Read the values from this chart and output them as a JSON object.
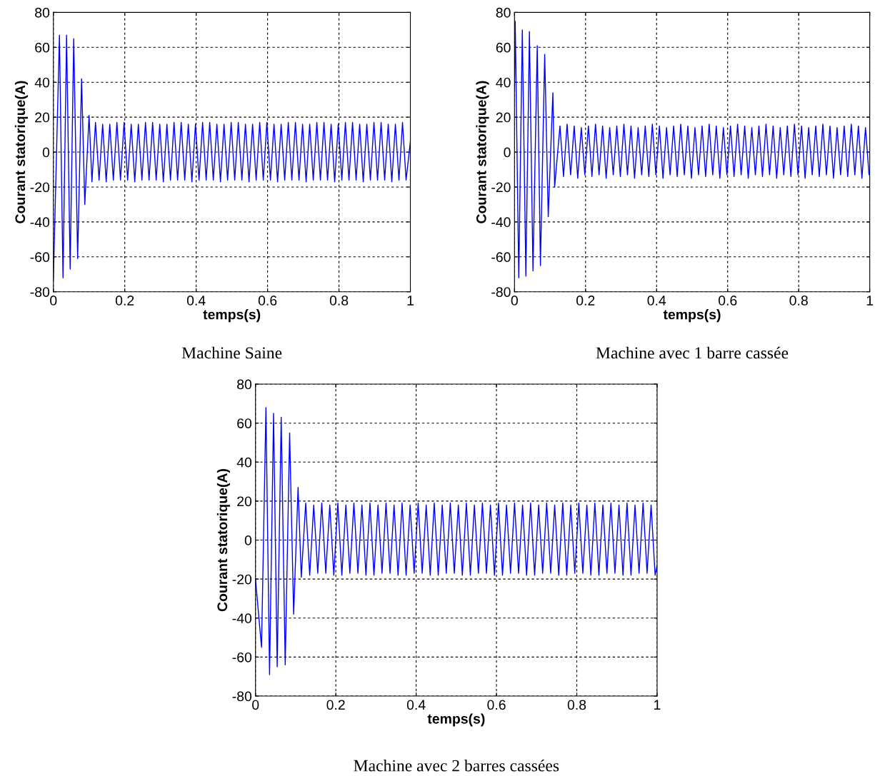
{
  "chart_data": [
    {
      "type": "line",
      "title": "Machine Saine",
      "xlabel": "temps(s)",
      "ylabel": "Courant statorique(A)",
      "color": "#0000ff",
      "xlim": [
        0,
        1
      ],
      "ylim": [
        -80,
        80
      ],
      "xticks": [
        0,
        0.2,
        0.4,
        0.6,
        0.8,
        1
      ],
      "yticks": [
        -80,
        -60,
        -40,
        -20,
        0,
        20,
        40,
        60,
        80
      ],
      "grid": true,
      "line_style": "solid",
      "x": [
        0,
        0.017,
        0.027,
        0.037,
        0.047,
        0.057,
        0.068,
        0.079,
        0.088,
        0.1,
        0.108,
        0.118,
        0.128,
        0.138,
        0.148,
        0.158,
        0.168,
        0.178,
        0.188,
        0.198,
        0.208,
        0.218,
        0.228,
        0.238,
        0.248,
        0.258,
        0.268,
        0.278,
        0.288,
        0.298,
        0.308,
        0.318,
        0.328,
        0.338,
        0.348,
        0.358,
        0.368,
        0.378,
        0.388,
        0.398,
        0.408,
        0.418,
        0.428,
        0.438,
        0.448,
        0.458,
        0.468,
        0.478,
        0.488,
        0.498,
        0.508,
        0.518,
        0.528,
        0.538,
        0.548,
        0.558,
        0.568,
        0.578,
        0.588,
        0.598,
        0.608,
        0.618,
        0.628,
        0.638,
        0.648,
        0.658,
        0.668,
        0.678,
        0.688,
        0.698,
        0.708,
        0.718,
        0.728,
        0.738,
        0.748,
        0.758,
        0.768,
        0.778,
        0.788,
        0.798,
        0.808,
        0.818,
        0.828,
        0.838,
        0.848,
        0.858,
        0.868,
        0.878,
        0.888,
        0.898,
        0.908,
        0.918,
        0.928,
        0.938,
        0.948,
        0.958,
        0.968,
        0.978,
        0.988,
        1
      ],
      "values": [
        -73,
        67,
        -72,
        67,
        -67,
        65,
        -61,
        42,
        -30,
        21,
        -17,
        17,
        -16,
        16,
        -17,
        16,
        -16,
        17,
        -16,
        17,
        -16,
        16,
        -17,
        16,
        -16,
        17,
        -16,
        17,
        -16,
        16,
        -17,
        16,
        -16,
        17,
        -16,
        17,
        -16,
        16,
        -17,
        16,
        -16,
        17,
        -16,
        17,
        -16,
        16,
        -17,
        16,
        -16,
        17,
        -16,
        17,
        -16,
        16,
        -17,
        16,
        -16,
        17,
        -16,
        17,
        -16,
        16,
        -17,
        16,
        -16,
        17,
        -16,
        17,
        -16,
        16,
        -17,
        16,
        -16,
        17,
        -16,
        17,
        -16,
        16,
        -17,
        16,
        -16,
        17,
        -16,
        17,
        -16,
        16,
        -17,
        16,
        -16,
        17,
        -16,
        17,
        -16,
        16,
        -17,
        16,
        -16,
        17,
        -16,
        6
      ]
    },
    {
      "type": "line",
      "title": "Machine avec 1 barre cassée",
      "xlabel": "temps(s)",
      "ylabel": "Courant statorique(A)",
      "color": "#0000ff",
      "xlim": [
        0,
        1
      ],
      "ylim": [
        -80,
        80
      ],
      "xticks": [
        0,
        0.2,
        0.4,
        0.6,
        0.8,
        1
      ],
      "yticks": [
        -80,
        -60,
        -40,
        -20,
        0,
        20,
        40,
        60,
        80
      ],
      "grid": true,
      "line_style": "solid",
      "x": [
        0,
        0.002,
        0.012,
        0.022,
        0.032,
        0.042,
        0.052,
        0.064,
        0.073,
        0.085,
        0.095,
        0.108,
        0.113,
        0.128,
        0.138,
        0.148,
        0.158,
        0.168,
        0.178,
        0.188,
        0.198,
        0.208,
        0.218,
        0.228,
        0.238,
        0.248,
        0.258,
        0.268,
        0.278,
        0.288,
        0.298,
        0.308,
        0.318,
        0.328,
        0.338,
        0.348,
        0.358,
        0.368,
        0.378,
        0.388,
        0.398,
        0.408,
        0.418,
        0.428,
        0.438,
        0.448,
        0.458,
        0.468,
        0.478,
        0.488,
        0.498,
        0.508,
        0.518,
        0.528,
        0.538,
        0.548,
        0.558,
        0.568,
        0.578,
        0.588,
        0.598,
        0.608,
        0.618,
        0.628,
        0.638,
        0.648,
        0.658,
        0.668,
        0.678,
        0.688,
        0.698,
        0.708,
        0.718,
        0.728,
        0.738,
        0.748,
        0.758,
        0.768,
        0.778,
        0.788,
        0.798,
        0.808,
        0.818,
        0.828,
        0.838,
        0.848,
        0.858,
        0.868,
        0.878,
        0.888,
        0.898,
        0.908,
        0.918,
        0.928,
        0.938,
        0.948,
        0.958,
        0.968,
        0.978,
        0.988,
        0.998,
        1
      ],
      "values": [
        35,
        75,
        -72,
        70,
        -71,
        69,
        -68,
        61,
        -65,
        56,
        -37,
        34,
        -20,
        15,
        -14,
        16,
        -13,
        15,
        -15,
        14,
        -13,
        15,
        -14,
        16,
        -13,
        15,
        -15,
        14,
        -13,
        15,
        -14,
        16,
        -13,
        15,
        -15,
        14,
        -13,
        15,
        -14,
        16,
        -13,
        15,
        -15,
        14,
        -13,
        15,
        -14,
        16,
        -13,
        15,
        -15,
        14,
        -13,
        15,
        -14,
        16,
        -13,
        15,
        -15,
        14,
        -13,
        15,
        -14,
        16,
        -13,
        15,
        -15,
        14,
        -13,
        15,
        -14,
        16,
        -13,
        15,
        -15,
        14,
        -13,
        15,
        -14,
        16,
        -13,
        15,
        -15,
        14,
        -13,
        15,
        -14,
        16,
        -13,
        15,
        -15,
        14,
        -13,
        15,
        -14,
        16,
        -13,
        15,
        -15,
        14,
        -13,
        -12
      ]
    },
    {
      "type": "line",
      "title": "Machine avec 2 barres cassées",
      "xlabel": "temps(s)",
      "ylabel": "Courant statorique(A)",
      "color": "#0000ff",
      "xlim": [
        0,
        1
      ],
      "ylim": [
        -80,
        80
      ],
      "xticks": [
        0,
        0.2,
        0.4,
        0.6,
        0.8,
        1
      ],
      "yticks": [
        -80,
        -60,
        -40,
        -20,
        0,
        20,
        40,
        60,
        80
      ],
      "grid": true,
      "line_style": "solid",
      "x": [
        0,
        0.015,
        0.026,
        0.035,
        0.045,
        0.054,
        0.064,
        0.074,
        0.085,
        0.095,
        0.106,
        0.114,
        0.125,
        0.135,
        0.145,
        0.155,
        0.165,
        0.175,
        0.185,
        0.195,
        0.205,
        0.215,
        0.225,
        0.235,
        0.245,
        0.255,
        0.265,
        0.275,
        0.285,
        0.295,
        0.305,
        0.315,
        0.325,
        0.335,
        0.345,
        0.355,
        0.365,
        0.375,
        0.385,
        0.395,
        0.405,
        0.415,
        0.425,
        0.435,
        0.445,
        0.455,
        0.465,
        0.475,
        0.485,
        0.495,
        0.505,
        0.515,
        0.525,
        0.535,
        0.545,
        0.555,
        0.565,
        0.575,
        0.585,
        0.595,
        0.605,
        0.615,
        0.625,
        0.635,
        0.645,
        0.655,
        0.665,
        0.675,
        0.685,
        0.695,
        0.705,
        0.715,
        0.725,
        0.735,
        0.745,
        0.755,
        0.765,
        0.775,
        0.785,
        0.795,
        0.805,
        0.815,
        0.825,
        0.835,
        0.845,
        0.855,
        0.865,
        0.875,
        0.885,
        0.895,
        0.905,
        0.915,
        0.925,
        0.935,
        0.945,
        0.955,
        0.965,
        0.975,
        0.985,
        0.995,
        1
      ],
      "values": [
        -20,
        -55,
        68,
        -69,
        65,
        -65,
        63,
        -64,
        55,
        -38,
        27,
        -19,
        19,
        -18,
        18,
        -17,
        19,
        -17,
        18,
        -18,
        19,
        -18,
        18,
        -17,
        19,
        -17,
        18,
        -18,
        19,
        -18,
        18,
        -17,
        19,
        -17,
        18,
        -18,
        19,
        -18,
        18,
        -17,
        19,
        -17,
        18,
        -18,
        19,
        -18,
        18,
        -17,
        19,
        -17,
        18,
        -18,
        19,
        -18,
        18,
        -17,
        19,
        -17,
        18,
        -18,
        19,
        -18,
        18,
        -17,
        19,
        -17,
        18,
        -18,
        19,
        -18,
        18,
        -17,
        19,
        -17,
        18,
        -18,
        19,
        -18,
        18,
        -17,
        19,
        -17,
        18,
        -18,
        19,
        -18,
        18,
        -17,
        19,
        -17,
        18,
        -18,
        19,
        -18,
        18,
        -17,
        19,
        -17,
        18,
        -18,
        -13
      ]
    }
  ]
}
